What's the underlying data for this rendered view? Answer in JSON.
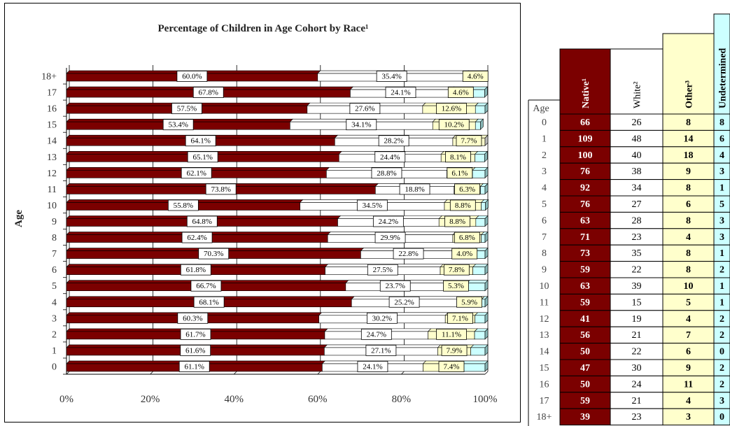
{
  "chart_data": {
    "type": "bar",
    "title": "Percentage of Children in Age Cohort by Race¹",
    "ylabel": "Age",
    "xlabel": "",
    "xlim": [
      0,
      100
    ],
    "x_ticks": [
      "0%",
      "20%",
      "40%",
      "60%",
      "80%",
      "100%"
    ],
    "categories": [
      "0",
      "1",
      "2",
      "3",
      "4",
      "5",
      "6",
      "7",
      "8",
      "9",
      "10",
      "11",
      "12",
      "13",
      "14",
      "15",
      "16",
      "17",
      "18+"
    ],
    "series": [
      {
        "name": "Native¹",
        "color": "#7b0000",
        "values": [
          61.1,
          61.6,
          61.7,
          60.3,
          68.1,
          66.7,
          61.8,
          70.3,
          62.4,
          64.8,
          55.8,
          73.8,
          62.1,
          65.1,
          64.1,
          53.4,
          57.5,
          67.8,
          60.0
        ],
        "labels": [
          "61.1%",
          "61.6%",
          "61.7%",
          "60.3%",
          "68.1%",
          "66.7%",
          "61.8%",
          "70.3%",
          "62.4%",
          "64.8%",
          "55.8%",
          "73.8%",
          "62.1%",
          "65.1%",
          "64.1%",
          "53.4%",
          "57.5%",
          "67.8%",
          "60.0%"
        ]
      },
      {
        "name": "White²",
        "color": "#ffffff",
        "values": [
          24.1,
          27.1,
          24.7,
          30.2,
          25.2,
          23.7,
          27.5,
          22.8,
          29.9,
          24.2,
          34.5,
          18.8,
          28.8,
          24.4,
          28.2,
          34.1,
          27.6,
          24.1,
          35.4
        ],
        "labels": [
          "24.1%",
          "27.1%",
          "24.7%",
          "30.2%",
          "25.2%",
          "23.7%",
          "27.5%",
          "22.8%",
          "29.9%",
          "24.2%",
          "34.5%",
          "18.8%",
          "28.8%",
          "24.4%",
          "28.2%",
          "34.1%",
          "27.6%",
          "24.1%",
          "35.4%"
        ]
      },
      {
        "name": "Other³",
        "color": "#ffffcc",
        "values": [
          7.4,
          7.9,
          11.1,
          7.1,
          5.9,
          5.3,
          7.8,
          4.0,
          6.8,
          8.8,
          8.8,
          6.3,
          6.1,
          8.1,
          7.7,
          10.2,
          12.6,
          4.6,
          4.6
        ],
        "labels": [
          "7.4%",
          "7.9%",
          "11.1%",
          "7.1%",
          "5.9%",
          "5.3%",
          "7.8%",
          "4.0%",
          "6.8%",
          "8.8%",
          "8.8%",
          "6.3%",
          "6.1%",
          "8.1%",
          "7.7%",
          "10.2%",
          "12.6%",
          "4.6%",
          "4.6%"
        ]
      },
      {
        "name": "Undetermined",
        "color": "#ccffff",
        "values": [
          7.4,
          3.4,
          2.5,
          2.4,
          0.8,
          4.3,
          2.9,
          2.9,
          0.9,
          2.2,
          1.0,
          1.1,
          3.0,
          2.3,
          0.0,
          1.2,
          2.3,
          3.4,
          0.0
        ]
      }
    ]
  },
  "table": {
    "age_header": "Age",
    "headers": [
      "Native¹",
      "White²",
      "Other³",
      "Undetermined"
    ],
    "rows": [
      [
        "0",
        "66",
        "26",
        "8",
        "8"
      ],
      [
        "1",
        "109",
        "48",
        "14",
        "6"
      ],
      [
        "2",
        "100",
        "40",
        "18",
        "4"
      ],
      [
        "3",
        "76",
        "38",
        "9",
        "3"
      ],
      [
        "4",
        "92",
        "34",
        "8",
        "1"
      ],
      [
        "5",
        "76",
        "27",
        "6",
        "5"
      ],
      [
        "6",
        "63",
        "28",
        "8",
        "3"
      ],
      [
        "7",
        "71",
        "23",
        "4",
        "3"
      ],
      [
        "8",
        "73",
        "35",
        "8",
        "1"
      ],
      [
        "9",
        "59",
        "22",
        "8",
        "2"
      ],
      [
        "10",
        "63",
        "39",
        "10",
        "1"
      ],
      [
        "11",
        "59",
        "15",
        "5",
        "1"
      ],
      [
        "12",
        "41",
        "19",
        "4",
        "2"
      ],
      [
        "13",
        "56",
        "21",
        "7",
        "2"
      ],
      [
        "14",
        "50",
        "22",
        "6",
        "0"
      ],
      [
        "15",
        "47",
        "30",
        "9",
        "2"
      ],
      [
        "16",
        "50",
        "24",
        "11",
        "2"
      ],
      [
        "17",
        "59",
        "21",
        "4",
        "3"
      ],
      [
        "18+",
        "39",
        "23",
        "3",
        "0"
      ]
    ],
    "colors": {
      "native": "#7b0000",
      "white": "#ffffff",
      "other": "#ffffcc",
      "undetermined": "#ccffff"
    }
  }
}
